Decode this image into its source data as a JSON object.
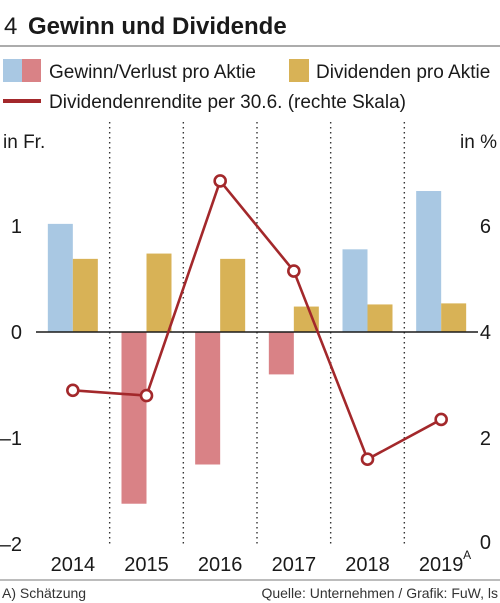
{
  "chart_data": {
    "type": "bar",
    "figure_number": "4",
    "title": "Gewinn und Dividende",
    "categories": [
      "2014",
      "2015",
      "2016",
      "2017",
      "2018",
      "2019"
    ],
    "category_superscript": {
      "2019": "A"
    },
    "left_axis": {
      "label": "in Fr.",
      "ylim": [
        -2,
        1.75
      ],
      "ticks": [
        1,
        0,
        -1,
        -2
      ],
      "tick_labels": [
        "1",
        "0",
        "–1",
        "–2"
      ]
    },
    "right_axis": {
      "label": "in %",
      "ylim": [
        0,
        7.5
      ],
      "ticks": [
        6,
        4,
        2,
        0
      ],
      "tick_labels": [
        "6",
        "4",
        "2",
        "0"
      ]
    },
    "series": [
      {
        "name": "Gewinn/Verlust pro Aktie",
        "type": "bar",
        "axis": "left",
        "values": [
          1.02,
          -1.62,
          -1.25,
          -0.4,
          0.78,
          1.33
        ],
        "color_positive": "#a9c8e3",
        "color_negative": "#d98286"
      },
      {
        "name": "Dividenden pro Aktie",
        "type": "bar",
        "axis": "left",
        "values": [
          0.69,
          0.74,
          0.69,
          0.24,
          0.26,
          0.27
        ],
        "color": "#d8b256"
      },
      {
        "name": "Dividendenrendite per 30.6. (rechte Skala)",
        "type": "line",
        "axis": "right",
        "values": [
          2.9,
          2.8,
          6.85,
          5.15,
          1.6,
          2.35
        ],
        "color": "#a3282b"
      }
    ],
    "grid": "vertical dotted separators",
    "legend_position": "top"
  },
  "footer": {
    "note": "A) Schätzung",
    "source": "Quelle: Unternehmen / Grafik: FuW, ls"
  }
}
